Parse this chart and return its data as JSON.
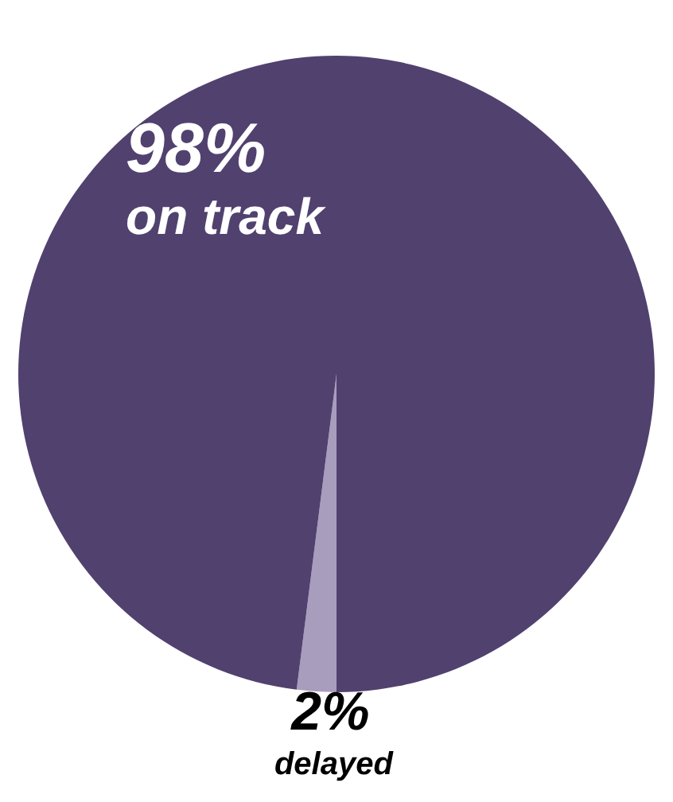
{
  "chart_data": {
    "type": "pie",
    "categories": [
      "delayed",
      "on track"
    ],
    "values": [
      2,
      98
    ],
    "value_labels": [
      "2%",
      "98%"
    ],
    "colors": [
      "#a89dbd",
      "#51416f"
    ]
  }
}
